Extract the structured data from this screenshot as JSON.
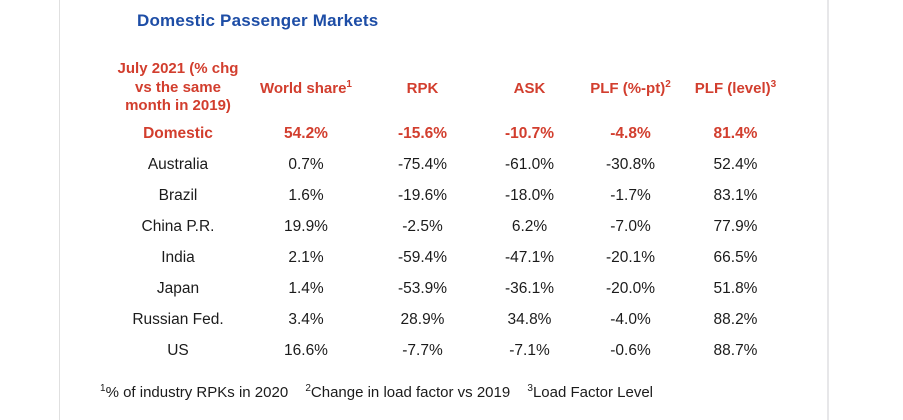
{
  "page": {
    "title": "Domestic Passenger Markets"
  },
  "colors": {
    "title_blue": "#1d4da6",
    "accent_red": "#d23e2e",
    "text_black": "#1b1b1b",
    "page_edge_gray": "#e0e0e0"
  },
  "table": {
    "header": {
      "period_label": "July 2021 (% chg vs the same month in 2019)",
      "columns": [
        {
          "label": "World share",
          "sup": "1"
        },
        {
          "label": "RPK",
          "sup": ""
        },
        {
          "label": "ASK",
          "sup": ""
        },
        {
          "label": "PLF (%-pt)",
          "sup": "2"
        },
        {
          "label": "PLF (level)",
          "sup": "3"
        }
      ]
    },
    "rows": [
      {
        "label": "Domestic",
        "values": [
          "54.2%",
          "-15.6%",
          "-10.7%",
          "-4.8%",
          "81.4%"
        ]
      },
      {
        "label": "Australia",
        "values": [
          "0.7%",
          "-75.4%",
          "-61.0%",
          "-30.8%",
          "52.4%"
        ]
      },
      {
        "label": "Brazil",
        "values": [
          "1.6%",
          "-19.6%",
          "-18.0%",
          "-1.7%",
          "83.1%"
        ]
      },
      {
        "label": "China P.R.",
        "values": [
          "19.9%",
          "-2.5%",
          "6.2%",
          "-7.0%",
          "77.9%"
        ]
      },
      {
        "label": "India",
        "values": [
          "2.1%",
          "-59.4%",
          "-47.1%",
          "-20.1%",
          "66.5%"
        ]
      },
      {
        "label": "Japan",
        "values": [
          "1.4%",
          "-53.9%",
          "-36.1%",
          "-20.0%",
          "51.8%"
        ]
      },
      {
        "label": "Russian Fed.",
        "values": [
          "3.4%",
          "28.9%",
          "34.8%",
          "-4.0%",
          "88.2%"
        ]
      },
      {
        "label": "US",
        "values": [
          "16.6%",
          "-7.7%",
          "-7.1%",
          "-0.6%",
          "88.7%"
        ]
      }
    ]
  },
  "footnotes": [
    {
      "sup": "1",
      "text": "% of industry RPKs in 2020"
    },
    {
      "sup": "2",
      "text": "Change in load factor vs 2019"
    },
    {
      "sup": "3",
      "text": "Load Factor Level"
    }
  ]
}
